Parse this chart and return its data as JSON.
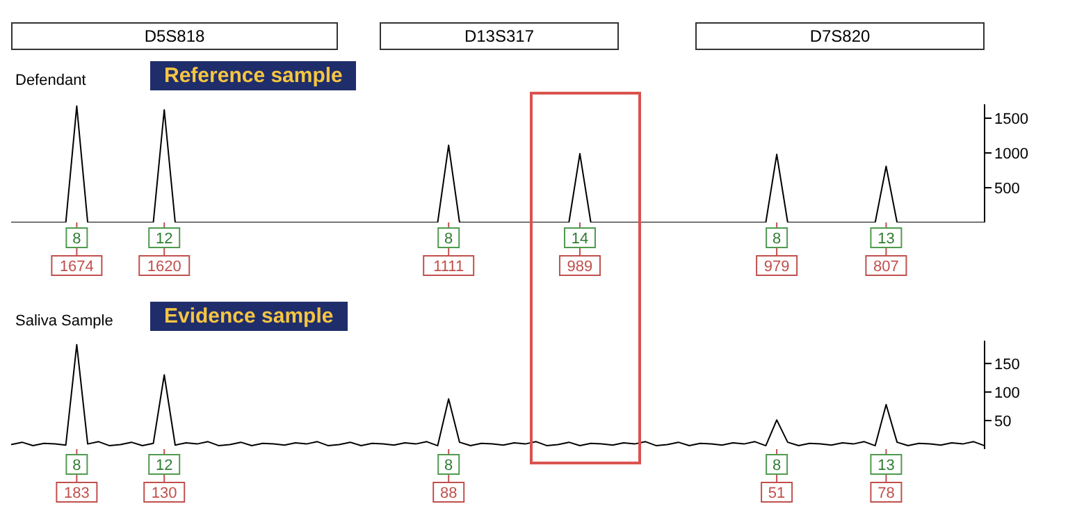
{
  "chart_data": [
    {
      "type": "other",
      "annotations": [
        "D5S818",
        "D13S317",
        "D7S820"
      ]
    },
    {
      "type": "line",
      "title": "Defendant",
      "subtitle": "Reference sample",
      "color": "#000000",
      "categories": [
        null,
        null,
        null,
        null,
        null,
        null,
        null,
        null,
        null,
        null,
        null,
        null,
        null,
        null,
        null,
        null,
        null,
        null,
        null,
        null,
        null,
        null,
        null,
        null,
        null,
        null,
        null,
        null,
        null,
        null,
        null,
        null,
        null,
        null,
        null,
        null,
        null,
        null,
        null,
        null,
        null,
        null,
        null,
        null,
        null,
        null,
        null,
        null,
        null,
        null,
        null,
        null,
        null,
        null,
        null,
        null,
        null,
        null,
        null,
        null,
        null,
        null,
        null,
        null,
        null,
        null,
        null,
        null,
        null,
        null,
        null,
        null,
        null,
        null,
        null,
        null,
        null,
        null,
        null,
        null,
        null,
        null,
        null,
        null,
        null,
        null,
        null,
        null,
        null,
        null
      ],
      "values": [
        0,
        0,
        0,
        0,
        0,
        0,
        1674,
        0,
        0,
        0,
        0,
        0,
        0,
        0,
        1620,
        0,
        0,
        0,
        0,
        0,
        0,
        0,
        0,
        0,
        0,
        0,
        0,
        0,
        0,
        0,
        0,
        0,
        0,
        0,
        0,
        0,
        0,
        0,
        0,
        0,
        1111,
        0,
        0,
        0,
        0,
        0,
        0,
        0,
        0,
        0,
        0,
        0,
        989,
        0,
        0,
        0,
        0,
        0,
        0,
        0,
        0,
        0,
        0,
        0,
        0,
        0,
        0,
        0,
        0,
        0,
        979,
        0,
        0,
        0,
        0,
        0,
        0,
        0,
        0,
        0,
        807,
        0,
        0,
        0,
        0,
        0,
        0,
        0,
        0,
        0
      ],
      "value_labels": [
        null,
        null,
        null,
        null,
        null,
        null,
        "1674",
        null,
        null,
        null,
        null,
        null,
        null,
        null,
        "1620",
        null,
        null,
        null,
        null,
        null,
        null,
        null,
        null,
        null,
        null,
        null,
        null,
        null,
        null,
        null,
        null,
        null,
        null,
        null,
        null,
        null,
        null,
        null,
        null,
        null,
        "1111",
        null,
        null,
        null,
        null,
        null,
        null,
        null,
        null,
        null,
        null,
        null,
        "989",
        null,
        null,
        null,
        null,
        null,
        null,
        null,
        null,
        null,
        null,
        null,
        null,
        null,
        null,
        null,
        null,
        null,
        "979",
        null,
        null,
        null,
        null,
        null,
        null,
        null,
        null,
        null,
        "807",
        null,
        null,
        null,
        null,
        null,
        null,
        null,
        null,
        null
      ],
      "annotations": [
        "8",
        "12",
        "8",
        "14",
        "8",
        "13"
      ],
      "ylim": [
        0,
        1700
      ],
      "yticks": [
        500,
        1000,
        1500
      ],
      "tick_labels": "y"
    },
    {
      "type": "line",
      "title": "Saliva Sample",
      "subtitle": "Evidence sample",
      "color": "#000000",
      "categories": [
        null,
        null,
        null,
        null,
        null,
        null,
        null,
        null,
        null,
        null,
        null,
        null,
        null,
        null,
        null,
        null,
        null,
        null,
        null,
        null,
        null,
        null,
        null,
        null,
        null,
        null,
        null,
        null,
        null,
        null,
        null,
        null,
        null,
        null,
        null,
        null,
        null,
        null,
        null,
        null,
        null,
        null,
        null,
        null,
        null,
        null,
        null,
        null,
        null,
        null,
        null,
        null,
        null,
        null,
        null,
        null,
        null,
        null,
        null,
        null,
        null,
        null,
        null,
        null,
        null,
        null,
        null,
        null,
        null,
        null,
        null,
        null,
        null,
        null,
        null,
        null,
        null,
        null,
        null,
        null,
        null,
        null,
        null,
        null,
        null,
        null,
        null,
        null,
        null,
        null
      ],
      "values": [
        8,
        12,
        6,
        10,
        9,
        7,
        183,
        9,
        13,
        6,
        8,
        12,
        6,
        10,
        130,
        7,
        11,
        9,
        13,
        6,
        8,
        12,
        6,
        10,
        9,
        7,
        11,
        9,
        13,
        6,
        8,
        12,
        6,
        10,
        9,
        7,
        11,
        9,
        13,
        6,
        88,
        12,
        6,
        10,
        9,
        7,
        11,
        9,
        13,
        6,
        8,
        12,
        6,
        10,
        9,
        7,
        11,
        9,
        13,
        6,
        8,
        12,
        6,
        10,
        9,
        7,
        11,
        9,
        13,
        6,
        51,
        12,
        6,
        10,
        9,
        7,
        11,
        9,
        13,
        6,
        78,
        12,
        6,
        10,
        9,
        7,
        11,
        9,
        13,
        6
      ],
      "value_labels": [
        null,
        null,
        null,
        null,
        null,
        null,
        "183",
        null,
        null,
        null,
        null,
        null,
        null,
        null,
        "130",
        null,
        null,
        null,
        null,
        null,
        null,
        null,
        null,
        null,
        null,
        null,
        null,
        null,
        null,
        null,
        null,
        null,
        null,
        null,
        null,
        null,
        null,
        null,
        null,
        null,
        "88",
        null,
        null,
        null,
        null,
        null,
        null,
        null,
        null,
        null,
        null,
        null,
        null,
        null,
        null,
        null,
        null,
        null,
        null,
        null,
        null,
        null,
        null,
        null,
        null,
        null,
        null,
        null,
        null,
        null,
        "51",
        null,
        null,
        null,
        null,
        null,
        null,
        null,
        null,
        null,
        "78",
        null,
        null,
        null,
        null,
        null,
        null,
        null,
        null,
        null
      ],
      "annotations": [
        "8",
        "12",
        "8",
        "8",
        "13"
      ],
      "ylim": [
        0,
        190
      ],
      "yticks": [
        50,
        100,
        150
      ],
      "tick_labels": "y"
    }
  ]
}
